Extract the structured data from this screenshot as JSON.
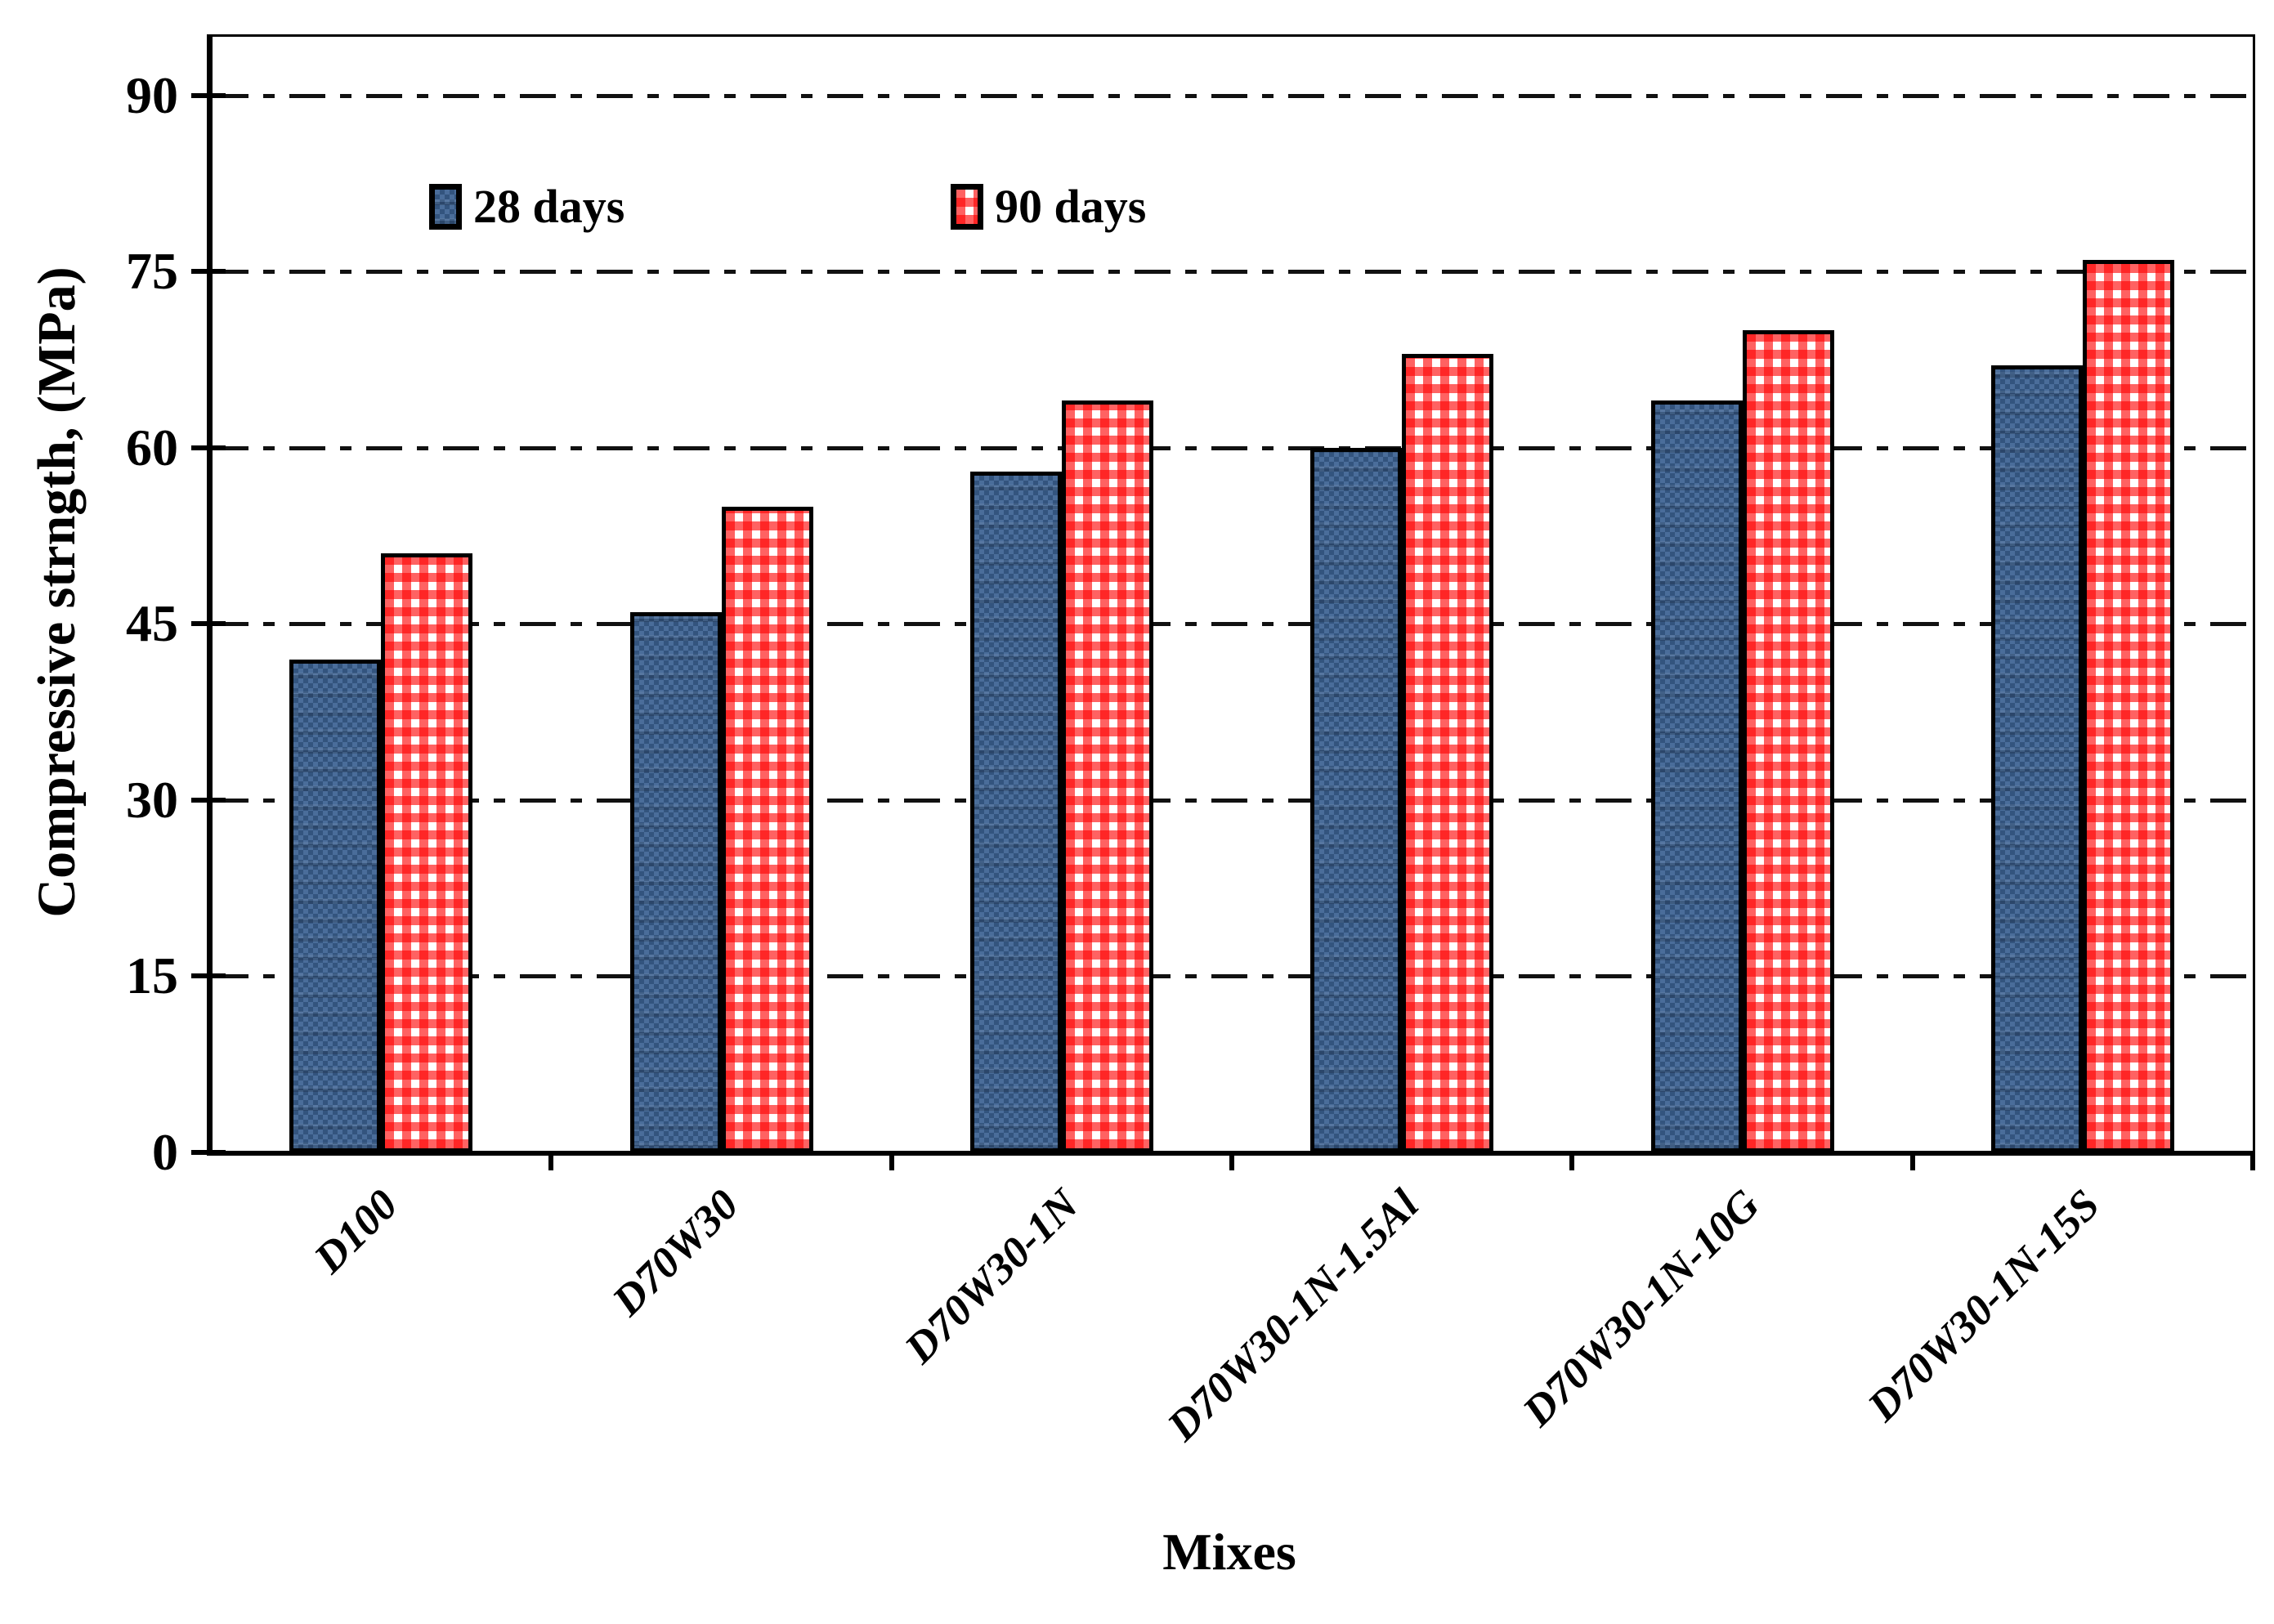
{
  "figure": {
    "background": "#ffffff",
    "axis_color": "#000000"
  },
  "chart_data": {
    "type": "bar",
    "title": "",
    "xlabel": "Mixes",
    "ylabel": "Compressive strngth, (MPa)",
    "categories": [
      "D100",
      "D70W30",
      "D70W30-1N",
      "D70W30-1N-1.5Al",
      "D70W30-1N-10G",
      "D70W30-1N-15S"
    ],
    "series": [
      {
        "name": "28 days",
        "color": "#3B6191",
        "pattern": "blue-weave-texture",
        "values": [
          42,
          46,
          58,
          60,
          64,
          67
        ]
      },
      {
        "name": "90 days",
        "color": "#FF0000",
        "pattern": "red-gingham-on-white",
        "values": [
          51,
          55,
          64,
          68,
          70,
          76
        ]
      }
    ],
    "ylim": [
      0,
      95
    ],
    "yticks": [
      0,
      15,
      30,
      45,
      60,
      75,
      90
    ],
    "gridlines": {
      "values": [
        15,
        30,
        45,
        60,
        75,
        90
      ],
      "style": "dash-dot",
      "color": "#000000"
    },
    "legend": {
      "position": "top-inside",
      "items": [
        "28 days",
        "90 days"
      ]
    },
    "grid_on": true
  }
}
